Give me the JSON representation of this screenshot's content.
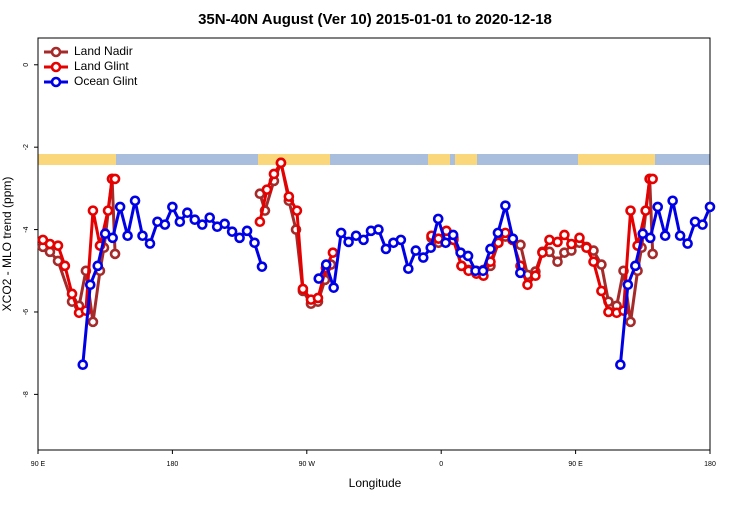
{
  "chart_data": {
    "type": "line",
    "title": "35N-40N August (Ver 10)   2015-01-01 to 2020-12-18",
    "xlabel": "Longitude",
    "ylabel": "XCO2 - MLO trend (ppm)",
    "xlim": [
      90,
      540
    ],
    "xticks": [
      {
        "value": 90,
        "label": "90 E"
      },
      {
        "value": 180,
        "label": "180"
      },
      {
        "value": 270,
        "label": "90 W"
      },
      {
        "value": 360,
        "label": "0"
      },
      {
        "value": 450,
        "label": "90 E"
      },
      {
        "value": 540,
        "label": "180"
      }
    ],
    "ylim": [
      -9.35,
      0.65
    ],
    "yticks": [
      0,
      -2,
      -4,
      -6,
      -8
    ],
    "legend": "top-left",
    "series": [
      {
        "name": "Land Nadir",
        "color": "#a52a2a",
        "x": [
          93.3,
          98,
          103.4,
          112.8,
          117.5,
          122.1,
          126.8,
          131.5,
          134.2,
          139.6,
          141.6,
          190,
          238.6,
          242,
          248,
          252.7,
          258,
          262.8,
          267.4,
          272.8,
          277.5,
          282.2,
          286.2,
          320,
          353.5,
          358.2,
          363.5,
          368.2,
          373.6,
          378.3,
          383.6,
          388.3,
          393,
          398.3,
          403,
          407.7,
          413.1,
          417.8,
          423.1,
          427.8,
          432.5,
          437.9,
          442.5,
          447.2,
          452.6,
          457.3,
          462,
          467.3,
          472,
          477.5,
          482.1,
          486.8,
          491.5,
          494.2,
          499.6,
          501.6
        ],
        "values": [
          -4.42,
          -4.54,
          -4.76,
          -5.75,
          -5.85,
          -5.0,
          -6.24,
          -5.0,
          -4.44,
          -2.77,
          -4.59,
          null,
          -3.13,
          -3.54,
          -2.82,
          -2.38,
          -3.3,
          -4.0,
          -5.49,
          -5.8,
          -5.75,
          -5.22,
          -4.85,
          null,
          -4.2,
          -4.32,
          -4.17,
          -4.2,
          -4.88,
          -4.98,
          -5.0,
          -4.98,
          -4.88,
          -4.32,
          -4.17,
          -4.25,
          -4.37,
          -5.1,
          -5.02,
          -4.54,
          -4.54,
          -4.78,
          -4.56,
          -4.51,
          -4.32,
          -4.42,
          -4.51,
          -4.85,
          -5.75,
          -5.85,
          -5.0,
          -6.24,
          -5.0,
          -4.44,
          -2.77,
          -4.59
        ]
      },
      {
        "name": "Land Glint",
        "color": "#e60000",
        "x": [
          93.3,
          98,
          103.4,
          108,
          112.8,
          117.5,
          122.1,
          126.8,
          131.5,
          136.9,
          139.6,
          141.6,
          190,
          238.6,
          243.3,
          248,
          252.7,
          258,
          263.4,
          267.4,
          272.8,
          277.5,
          282.8,
          287.5,
          320,
          353.5,
          358.2,
          363.5,
          368.2,
          373.6,
          378.3,
          383.6,
          388.3,
          393,
          398.3,
          403,
          407.7,
          413.1,
          417.8,
          423.1,
          427.8,
          432.5,
          437.9,
          442.5,
          447.2,
          452.6,
          457.3,
          462,
          467.3,
          472,
          477.5,
          482.1,
          486.8,
          491.5,
          496.9,
          499.6,
          501.6
        ],
        "values": [
          -4.25,
          -4.35,
          -4.39,
          -4.88,
          -5.56,
          -6.02,
          -5.97,
          -3.54,
          -4.39,
          -3.54,
          -2.77,
          -2.77,
          null,
          -3.81,
          -3.03,
          -2.65,
          -2.38,
          -3.2,
          -3.54,
          -5.44,
          -5.7,
          -5.66,
          -4.93,
          -4.56,
          null,
          -4.15,
          -4.22,
          -4.03,
          -4.25,
          -4.88,
          -5.0,
          -5.07,
          -5.12,
          -4.78,
          -4.32,
          -4.08,
          -4.25,
          -4.88,
          -5.34,
          -5.12,
          -4.56,
          -4.25,
          -4.3,
          -4.13,
          -4.35,
          -4.2,
          -4.44,
          -4.78,
          -5.49,
          -6.0,
          -6.02,
          -5.97,
          -3.54,
          -4.39,
          -3.54,
          -2.77,
          -2.77
        ]
      },
      {
        "name": "Ocean Glint",
        "color": "#0000e6",
        "x": [
          120,
          125,
          130,
          135,
          140,
          145,
          150,
          155,
          160,
          165,
          170,
          175,
          180,
          185,
          190,
          195,
          200,
          205,
          210,
          215,
          220,
          225,
          230,
          235,
          240,
          260,
          278,
          283,
          288,
          293,
          298,
          303,
          308,
          313,
          318,
          323,
          328,
          333,
          338,
          343,
          348,
          353,
          358,
          363,
          368,
          373,
          378,
          383,
          388,
          393,
          398,
          403,
          408,
          413,
          450,
          480,
          485,
          490,
          495,
          500,
          505,
          510,
          515,
          520,
          525,
          530,
          535,
          540
        ],
        "values": [
          -7.28,
          -5.34,
          -4.88,
          -4.1,
          -4.2,
          -3.45,
          -4.15,
          -3.3,
          -4.15,
          -4.34,
          -3.81,
          -3.88,
          -3.45,
          -3.81,
          -3.59,
          -3.76,
          -3.88,
          -3.71,
          -3.93,
          -3.86,
          -4.05,
          -4.2,
          -4.03,
          -4.32,
          -4.9,
          null,
          -5.19,
          -4.85,
          -5.41,
          -4.08,
          -4.3,
          -4.15,
          -4.25,
          -4.03,
          -4.0,
          -4.47,
          -4.32,
          -4.25,
          -4.95,
          -4.51,
          -4.68,
          -4.44,
          -3.74,
          -4.32,
          -4.13,
          -4.56,
          -4.64,
          -5.0,
          -5.0,
          -4.47,
          -4.08,
          -3.42,
          -4.22,
          -5.05,
          null,
          -7.28,
          -5.34,
          -4.88,
          -4.1,
          -4.2,
          -3.45,
          -4.15,
          -3.3,
          -4.15,
          -4.34,
          -3.81,
          -3.88,
          -3.45
        ]
      }
    ]
  }
}
